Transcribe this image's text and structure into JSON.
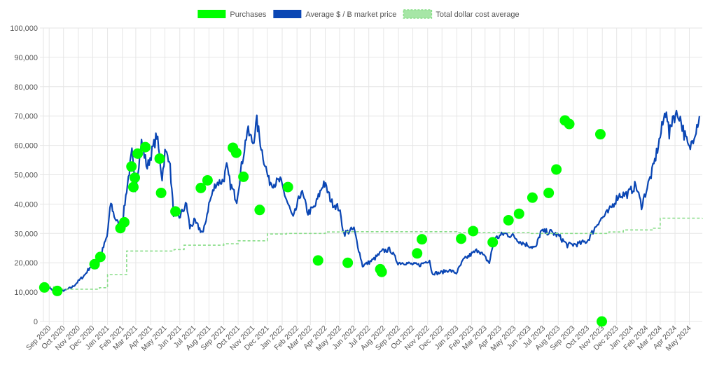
{
  "chart_data": {
    "type": "line",
    "grid": true,
    "legend_position": "top-center",
    "legend": [
      {
        "name": "Purchases",
        "kind": "points",
        "color": "#00ff00"
      },
      {
        "name": "Average $ / Ƀ market price",
        "kind": "line",
        "color": "#0a46b4"
      },
      {
        "name": "Total dollar cost average",
        "kind": "dashed-line",
        "color": "#88dd88"
      }
    ],
    "ylim": [
      0,
      100000
    ],
    "y_ticks": [
      "0",
      "10,000",
      "20,000",
      "30,000",
      "40,000",
      "50,000",
      "60,000",
      "70,000",
      "80,000",
      "90,000",
      "100,000"
    ],
    "xlim": [
      "2020-08-20",
      "2024-05-28"
    ],
    "x_ticks": [
      {
        "date": "2020-09-01",
        "label": "Sep 2020"
      },
      {
        "date": "2020-10-01",
        "label": "Oct 2020"
      },
      {
        "date": "2020-11-01",
        "label": "Nov 2020"
      },
      {
        "date": "2020-12-01",
        "label": "Dec 2020"
      },
      {
        "date": "2021-01-01",
        "label": "Jan 2021"
      },
      {
        "date": "2021-02-01",
        "label": "Feb 2021"
      },
      {
        "date": "2021-03-01",
        "label": "Mar 2021"
      },
      {
        "date": "2021-04-01",
        "label": "Apr 2021"
      },
      {
        "date": "2021-05-01",
        "label": "May 2021"
      },
      {
        "date": "2021-06-01",
        "label": "Jun 2021"
      },
      {
        "date": "2021-07-01",
        "label": "Jul 2021"
      },
      {
        "date": "2021-08-01",
        "label": "Aug 2021"
      },
      {
        "date": "2021-09-01",
        "label": "Sep 2021"
      },
      {
        "date": "2021-10-01",
        "label": "Oct 2021"
      },
      {
        "date": "2021-11-01",
        "label": "Nov 2021"
      },
      {
        "date": "2021-12-01",
        "label": "Dec 2021"
      },
      {
        "date": "2022-01-01",
        "label": "Jan 2022"
      },
      {
        "date": "2022-02-01",
        "label": "Feb 2022"
      },
      {
        "date": "2022-03-01",
        "label": "Mar 2022"
      },
      {
        "date": "2022-04-01",
        "label": "Apr 2022"
      },
      {
        "date": "2022-05-01",
        "label": "May 2022"
      },
      {
        "date": "2022-06-01",
        "label": "Jun 2022"
      },
      {
        "date": "2022-07-01",
        "label": "Jul 2022"
      },
      {
        "date": "2022-08-01",
        "label": "Aug 2022"
      },
      {
        "date": "2022-09-01",
        "label": "Sep 2022"
      },
      {
        "date": "2022-10-01",
        "label": "Oct 2022"
      },
      {
        "date": "2022-11-01",
        "label": "Nov 2022"
      },
      {
        "date": "2022-12-01",
        "label": "Dec 2022"
      },
      {
        "date": "2023-01-01",
        "label": "Jan 2023"
      },
      {
        "date": "2023-02-01",
        "label": "Feb 2023"
      },
      {
        "date": "2023-03-01",
        "label": "Mar 2023"
      },
      {
        "date": "2023-04-01",
        "label": "Apr 2023"
      },
      {
        "date": "2023-05-01",
        "label": "May 2023"
      },
      {
        "date": "2023-06-01",
        "label": "Jun 2023"
      },
      {
        "date": "2023-07-01",
        "label": "Jul 2023"
      },
      {
        "date": "2023-08-01",
        "label": "Aug 2023"
      },
      {
        "date": "2023-09-01",
        "label": "Sep 2023"
      },
      {
        "date": "2023-10-01",
        "label": "Oct 2023"
      },
      {
        "date": "2023-11-01",
        "label": "Nov 2023"
      },
      {
        "date": "2023-12-01",
        "label": "Dec 2023"
      },
      {
        "date": "2024-01-01",
        "label": "Jan 2024"
      },
      {
        "date": "2024-02-01",
        "label": "Feb 2024"
      },
      {
        "date": "2024-03-01",
        "label": "Mar 2024"
      },
      {
        "date": "2024-04-01",
        "label": "Apr 2024"
      },
      {
        "date": "2024-05-01",
        "label": "May 2024"
      }
    ],
    "series": [
      {
        "name": "Average $ / Ƀ market price",
        "type": "line",
        "color": "#0a46b4",
        "points": [
          [
            "2020-08-20",
            11800
          ],
          [
            "2020-09-01",
            11500
          ],
          [
            "2020-09-10",
            10300
          ],
          [
            "2020-09-25",
            10700
          ],
          [
            "2020-10-05",
            10600
          ],
          [
            "2020-10-20",
            11800
          ],
          [
            "2020-11-01",
            13700
          ],
          [
            "2020-11-15",
            16000
          ],
          [
            "2020-11-25",
            18500
          ],
          [
            "2020-12-01",
            19200
          ],
          [
            "2020-12-10",
            18300
          ],
          [
            "2020-12-20",
            23500
          ],
          [
            "2020-12-31",
            29000
          ],
          [
            "2021-01-08",
            40500
          ],
          [
            "2021-01-15",
            36000
          ],
          [
            "2021-01-25",
            32500
          ],
          [
            "2021-02-01",
            33500
          ],
          [
            "2021-02-10",
            45000
          ],
          [
            "2021-02-21",
            57500
          ],
          [
            "2021-02-28",
            45000
          ],
          [
            "2021-03-13",
            61000
          ],
          [
            "2021-03-25",
            52500
          ],
          [
            "2021-04-14",
            63500
          ],
          [
            "2021-04-25",
            49000
          ],
          [
            "2021-05-01",
            57500
          ],
          [
            "2021-05-10",
            56000
          ],
          [
            "2021-05-19",
            37000
          ],
          [
            "2021-05-31",
            35500
          ],
          [
            "2021-06-15",
            40000
          ],
          [
            "2021-06-22",
            32000
          ],
          [
            "2021-07-01",
            34000
          ],
          [
            "2021-07-20",
            30000
          ],
          [
            "2021-08-01",
            40000
          ],
          [
            "2021-08-15",
            47000
          ],
          [
            "2021-08-31",
            48000
          ],
          [
            "2021-09-07",
            52500
          ],
          [
            "2021-09-15",
            46500
          ],
          [
            "2021-09-28",
            41500
          ],
          [
            "2021-10-10",
            55000
          ],
          [
            "2021-10-20",
            65000
          ],
          [
            "2021-11-01",
            61000
          ],
          [
            "2021-11-09",
            68000
          ],
          [
            "2021-11-20",
            58000
          ],
          [
            "2021-12-04",
            48000
          ],
          [
            "2021-12-15",
            47000
          ],
          [
            "2021-12-28",
            48000
          ],
          [
            "2022-01-10",
            41500
          ],
          [
            "2022-01-24",
            35000
          ],
          [
            "2022-02-10",
            44500
          ],
          [
            "2022-02-24",
            37000
          ],
          [
            "2022-03-10",
            39000
          ],
          [
            "2022-03-29",
            47500
          ],
          [
            "2022-04-15",
            40500
          ],
          [
            "2022-04-30",
            38500
          ],
          [
            "2022-05-10",
            30000
          ],
          [
            "2022-05-31",
            31500
          ],
          [
            "2022-06-18",
            19000
          ],
          [
            "2022-06-30",
            20000
          ],
          [
            "2022-07-10",
            21000
          ],
          [
            "2022-07-30",
            24000
          ],
          [
            "2022-08-15",
            24500
          ],
          [
            "2022-08-31",
            20000
          ],
          [
            "2022-09-15",
            20000
          ],
          [
            "2022-09-30",
            19500
          ],
          [
            "2022-10-15",
            19200
          ],
          [
            "2022-11-05",
            21000
          ],
          [
            "2022-11-10",
            16500
          ],
          [
            "2022-11-25",
            16500
          ],
          [
            "2022-12-15",
            17500
          ],
          [
            "2022-12-31",
            16500
          ],
          [
            "2023-01-15",
            21000
          ],
          [
            "2023-02-01",
            23000
          ],
          [
            "2023-02-15",
            24500
          ],
          [
            "2023-03-10",
            20000
          ],
          [
            "2023-03-20",
            28000
          ],
          [
            "2023-04-10",
            30000
          ],
          [
            "2023-04-30",
            29000
          ],
          [
            "2023-05-15",
            27000
          ],
          [
            "2023-06-15",
            25000
          ],
          [
            "2023-06-25",
            30500
          ],
          [
            "2023-07-15",
            30500
          ],
          [
            "2023-08-01",
            29300
          ],
          [
            "2023-08-20",
            26000
          ],
          [
            "2023-09-15",
            26500
          ],
          [
            "2023-10-01",
            27500
          ],
          [
            "2023-10-24",
            34000
          ],
          [
            "2023-11-15",
            37500
          ],
          [
            "2023-12-05",
            43000
          ],
          [
            "2023-12-25",
            43500
          ],
          [
            "2024-01-10",
            46500
          ],
          [
            "2024-01-22",
            39500
          ],
          [
            "2024-02-15",
            52000
          ],
          [
            "2024-02-28",
            61500
          ],
          [
            "2024-03-14",
            73000
          ],
          [
            "2024-03-20",
            63000
          ],
          [
            "2024-03-27",
            70000
          ],
          [
            "2024-04-10",
            70500
          ],
          [
            "2024-04-20",
            64000
          ],
          [
            "2024-05-01",
            58500
          ],
          [
            "2024-05-15",
            66000
          ],
          [
            "2024-05-22",
            70000
          ]
        ]
      },
      {
        "name": "Total dollar cost average",
        "type": "step-line",
        "style": "dashed",
        "color": "#88dd88",
        "points": [
          [
            "2020-08-20",
            11800
          ],
          [
            "2020-09-10",
            11000
          ],
          [
            "2020-12-15",
            11500
          ],
          [
            "2021-01-01",
            16000
          ],
          [
            "2021-02-10",
            24000
          ],
          [
            "2021-05-20",
            24500
          ],
          [
            "2021-06-10",
            26000
          ],
          [
            "2021-09-01",
            26500
          ],
          [
            "2021-10-01",
            27500
          ],
          [
            "2021-12-01",
            29800
          ],
          [
            "2022-01-10",
            30000
          ],
          [
            "2022-04-01",
            30500
          ],
          [
            "2022-05-01",
            30600
          ],
          [
            "2022-10-01",
            30600
          ],
          [
            "2023-01-01",
            30300
          ],
          [
            "2023-06-01",
            30000
          ],
          [
            "2023-09-01",
            30000
          ],
          [
            "2023-11-15",
            30500
          ],
          [
            "2023-12-15",
            31200
          ],
          [
            "2024-02-15",
            31800
          ],
          [
            "2024-03-01",
            35200
          ],
          [
            "2024-05-28",
            35300
          ]
        ]
      },
      {
        "name": "Purchases",
        "type": "scatter",
        "color": "#00ff00",
        "points": [
          [
            "2020-08-22",
            11600
          ],
          [
            "2020-09-18",
            10400
          ],
          [
            "2020-12-05",
            19500
          ],
          [
            "2020-12-17",
            22000
          ],
          [
            "2021-01-28",
            31800
          ],
          [
            "2021-02-05",
            33800
          ],
          [
            "2021-02-20",
            52800
          ],
          [
            "2021-02-24",
            45800
          ],
          [
            "2021-02-27",
            49000
          ],
          [
            "2021-03-05",
            57200
          ],
          [
            "2021-03-21",
            59400
          ],
          [
            "2021-04-20",
            55500
          ],
          [
            "2021-04-23",
            43800
          ],
          [
            "2021-05-23",
            37500
          ],
          [
            "2021-07-15",
            45500
          ],
          [
            "2021-07-29",
            48100
          ],
          [
            "2021-09-20",
            59200
          ],
          [
            "2021-09-27",
            57500
          ],
          [
            "2021-10-12",
            49300
          ],
          [
            "2021-11-15",
            38000
          ],
          [
            "2022-01-13",
            45800
          ],
          [
            "2022-03-17",
            20800
          ],
          [
            "2022-05-18",
            20000
          ],
          [
            "2022-07-25",
            17800
          ],
          [
            "2022-07-28",
            16900
          ],
          [
            "2022-10-10",
            23200
          ],
          [
            "2022-10-20",
            28000
          ],
          [
            "2023-01-10",
            28200
          ],
          [
            "2023-02-04",
            30800
          ],
          [
            "2023-03-17",
            27000
          ],
          [
            "2023-04-19",
            34500
          ],
          [
            "2023-05-11",
            36700
          ],
          [
            "2023-06-08",
            42200
          ],
          [
            "2023-07-12",
            43800
          ],
          [
            "2023-07-28",
            51800
          ],
          [
            "2023-08-15",
            68500
          ],
          [
            "2023-08-24",
            67300
          ],
          [
            "2023-10-28",
            63800
          ],
          [
            "2023-10-31",
            0
          ]
        ]
      }
    ]
  }
}
